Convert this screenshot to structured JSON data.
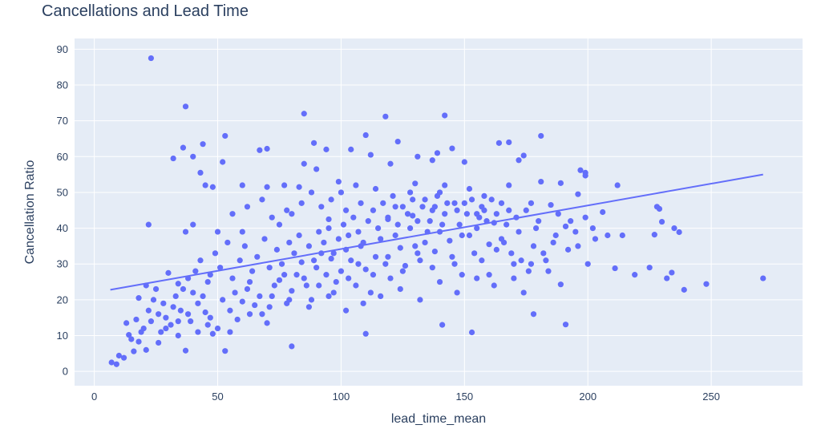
{
  "chart_data": {
    "type": "scatter",
    "title": "Cancellations and Lead Time",
    "xlabel": "lead_time_mean",
    "ylabel": "Cancellation Ratio",
    "xlim": [
      -8,
      287
    ],
    "ylim": [
      -4,
      93
    ],
    "x_ticks": [
      0,
      50,
      100,
      150,
      200,
      250
    ],
    "y_ticks": [
      0,
      10,
      20,
      30,
      40,
      50,
      60,
      70,
      80,
      90
    ],
    "grid": true,
    "legend": "none",
    "colors": {
      "plot_bg": "#e5ecf6",
      "grid": "#ffffff",
      "marker": "#636efa",
      "trend": "#636efa"
    },
    "trendline": {
      "x": [
        6.5,
        271
      ],
      "y": [
        22.8,
        55.0
      ]
    },
    "points": [
      [
        23,
        87.5
      ],
      [
        37,
        74
      ],
      [
        85,
        72
      ],
      [
        118,
        71.2
      ],
      [
        142,
        71.5
      ],
      [
        110,
        66
      ],
      [
        53,
        65.8
      ],
      [
        181,
        65.8
      ],
      [
        44,
        63.5
      ],
      [
        36,
        62.5
      ],
      [
        67,
        61.8
      ],
      [
        70,
        62.2
      ],
      [
        89,
        63.8
      ],
      [
        94,
        62
      ],
      [
        104,
        62
      ],
      [
        139,
        61
      ],
      [
        145,
        62.3
      ],
      [
        164,
        63.8
      ],
      [
        168,
        64
      ],
      [
        123,
        64.2
      ],
      [
        32,
        59.5
      ],
      [
        40,
        60
      ],
      [
        52,
        58.5
      ],
      [
        85,
        58
      ],
      [
        90,
        56.5
      ],
      [
        112,
        60.5
      ],
      [
        120,
        58
      ],
      [
        131,
        60
      ],
      [
        137,
        59
      ],
      [
        150,
        58.5
      ],
      [
        172,
        59
      ],
      [
        174,
        60.3
      ],
      [
        197,
        56.2
      ],
      [
        199,
        55.5
      ],
      [
        199,
        54.7
      ],
      [
        43,
        55.5
      ],
      [
        45,
        52
      ],
      [
        48,
        51.5
      ],
      [
        60,
        52
      ],
      [
        70,
        51.5
      ],
      [
        77,
        52
      ],
      [
        83,
        51.5
      ],
      [
        99,
        53
      ],
      [
        106,
        52
      ],
      [
        130,
        52.5
      ],
      [
        142,
        52
      ],
      [
        168,
        52
      ],
      [
        181,
        53
      ],
      [
        189,
        52.6
      ],
      [
        212,
        52
      ],
      [
        22,
        41
      ],
      [
        37,
        39
      ],
      [
        40,
        41
      ],
      [
        50,
        39
      ],
      [
        60,
        39
      ],
      [
        75,
        41
      ],
      [
        80,
        44
      ],
      [
        95,
        42.5
      ],
      [
        102,
        45
      ],
      [
        119,
        42.5
      ],
      [
        129,
        43.5
      ],
      [
        138,
        46
      ],
      [
        155,
        44
      ],
      [
        165,
        47
      ],
      [
        177,
        47
      ],
      [
        185,
        46.5
      ],
      [
        196,
        49.5
      ],
      [
        206,
        44.5
      ],
      [
        229,
        45.4
      ],
      [
        228,
        46
      ],
      [
        230,
        41.8
      ],
      [
        191,
        40.5
      ],
      [
        202,
        40
      ],
      [
        208,
        38
      ],
      [
        214,
        38
      ],
      [
        237,
        38.9
      ],
      [
        227,
        38.2
      ],
      [
        235,
        40
      ],
      [
        219,
        27
      ],
      [
        211,
        28.8
      ],
      [
        232,
        26
      ],
      [
        225,
        29
      ],
      [
        234,
        27.6
      ],
      [
        239,
        22.8
      ],
      [
        248,
        24.4
      ],
      [
        271,
        26
      ],
      [
        189,
        24.3
      ],
      [
        178,
        16
      ],
      [
        191,
        13.1
      ],
      [
        141,
        13
      ],
      [
        153,
        10.9
      ],
      [
        110,
        10.5
      ],
      [
        80,
        7
      ],
      [
        53,
        5.7
      ],
      [
        37,
        5.8
      ],
      [
        21,
        6
      ],
      [
        18,
        8.3
      ],
      [
        16,
        5.6
      ],
      [
        10,
        4.4
      ],
      [
        7,
        2.5
      ],
      [
        9,
        2
      ],
      [
        12,
        3.8
      ],
      [
        14,
        10.2
      ],
      [
        13,
        13.5
      ],
      [
        17,
        14.5
      ],
      [
        18,
        20.5
      ],
      [
        21,
        24
      ],
      [
        25,
        23
      ],
      [
        30,
        27.5
      ],
      [
        34,
        24.5
      ],
      [
        38,
        26
      ],
      [
        40,
        22
      ],
      [
        42,
        19
      ],
      [
        45,
        16.5
      ],
      [
        46,
        13
      ],
      [
        48,
        10.5
      ],
      [
        50,
        12
      ],
      [
        55,
        11
      ],
      [
        58,
        14.5
      ],
      [
        60,
        19.5
      ],
      [
        62,
        23
      ],
      [
        65,
        18.5
      ],
      [
        68,
        16
      ],
      [
        70,
        13.5
      ],
      [
        72,
        21
      ],
      [
        75,
        25.5
      ],
      [
        78,
        19
      ],
      [
        80,
        22.5
      ],
      [
        82,
        27
      ],
      [
        84,
        30.5
      ],
      [
        86,
        24
      ],
      [
        88,
        20
      ],
      [
        90,
        29
      ],
      [
        92,
        33
      ],
      [
        94,
        27
      ],
      [
        96,
        31.5
      ],
      [
        98,
        25
      ],
      [
        100,
        28
      ],
      [
        102,
        34
      ],
      [
        104,
        31
      ],
      [
        106,
        24
      ],
      [
        108,
        35
      ],
      [
        110,
        28.5
      ],
      [
        112,
        22
      ],
      [
        114,
        32
      ],
      [
        116,
        37
      ],
      [
        118,
        30
      ],
      [
        120,
        26
      ],
      [
        122,
        38
      ],
      [
        124,
        34.5
      ],
      [
        126,
        29.5
      ],
      [
        128,
        40
      ],
      [
        130,
        35
      ],
      [
        132,
        31
      ],
      [
        134,
        36
      ],
      [
        136,
        42
      ],
      [
        138,
        33.5
      ],
      [
        140,
        39
      ],
      [
        142,
        44
      ],
      [
        144,
        36.5
      ],
      [
        146,
        30
      ],
      [
        148,
        41
      ],
      [
        150,
        47
      ],
      [
        152,
        38
      ],
      [
        154,
        33
      ],
      [
        156,
        43
      ],
      [
        158,
        49
      ],
      [
        160,
        35.5
      ],
      [
        162,
        41.5
      ],
      [
        165,
        37
      ],
      [
        168,
        45
      ],
      [
        170,
        30
      ],
      [
        172,
        39
      ],
      [
        174,
        22
      ],
      [
        176,
        28
      ],
      [
        178,
        35
      ],
      [
        180,
        42
      ],
      [
        183,
        31
      ],
      [
        186,
        36
      ],
      [
        188,
        44
      ],
      [
        192,
        34
      ],
      [
        195,
        39
      ],
      [
        199,
        43
      ],
      [
        203,
        37
      ],
      [
        26,
        16
      ],
      [
        28,
        19
      ],
      [
        31,
        13
      ],
      [
        33,
        21
      ],
      [
        35,
        17
      ],
      [
        39,
        14
      ],
      [
        41,
        28
      ],
      [
        43,
        31
      ],
      [
        47,
        27
      ],
      [
        49,
        33
      ],
      [
        51,
        29
      ],
      [
        54,
        36
      ],
      [
        56,
        26
      ],
      [
        59,
        31
      ],
      [
        61,
        35
      ],
      [
        64,
        28
      ],
      [
        66,
        32
      ],
      [
        69,
        37
      ],
      [
        71,
        29
      ],
      [
        74,
        34
      ],
      [
        76,
        30
      ],
      [
        79,
        36
      ],
      [
        81,
        33
      ],
      [
        83,
        38
      ],
      [
        87,
        35
      ],
      [
        89,
        31
      ],
      [
        91,
        39
      ],
      [
        93,
        36
      ],
      [
        95,
        40
      ],
      [
        97,
        33
      ],
      [
        99,
        37
      ],
      [
        101,
        41
      ],
      [
        103,
        38
      ],
      [
        105,
        43
      ],
      [
        107,
        39
      ],
      [
        109,
        36
      ],
      [
        111,
        42
      ],
      [
        113,
        45
      ],
      [
        115,
        40
      ],
      [
        117,
        47
      ],
      [
        119,
        43
      ],
      [
        121,
        49
      ],
      [
        123,
        41
      ],
      [
        125,
        46
      ],
      [
        127,
        44
      ],
      [
        129,
        48
      ],
      [
        131,
        42
      ],
      [
        133,
        46
      ],
      [
        135,
        39
      ],
      [
        137,
        45
      ],
      [
        139,
        49
      ],
      [
        141,
        41
      ],
      [
        143,
        47
      ],
      [
        147,
        45
      ],
      [
        149,
        38
      ],
      [
        151,
        44
      ],
      [
        153,
        48
      ],
      [
        155,
        40
      ],
      [
        157,
        46
      ],
      [
        159,
        42
      ],
      [
        161,
        48
      ],
      [
        163,
        44
      ],
      [
        167,
        41
      ],
      [
        171,
        43
      ],
      [
        175,
        45
      ],
      [
        179,
        40
      ],
      [
        187,
        38
      ],
      [
        193,
        42
      ],
      [
        20,
        12
      ],
      [
        22,
        17
      ],
      [
        24,
        20
      ],
      [
        27,
        11
      ],
      [
        29,
        15
      ],
      [
        32,
        18
      ],
      [
        34,
        10
      ],
      [
        36,
        23
      ],
      [
        38,
        16
      ],
      [
        44,
        21
      ],
      [
        46,
        25
      ],
      [
        52,
        20
      ],
      [
        57,
        22
      ],
      [
        63,
        25
      ],
      [
        67,
        21
      ],
      [
        73,
        24
      ],
      [
        77,
        27
      ],
      [
        85,
        26
      ],
      [
        91,
        24
      ],
      [
        97,
        22
      ],
      [
        103,
        26
      ],
      [
        107,
        30
      ],
      [
        113,
        27
      ],
      [
        119,
        32
      ],
      [
        125,
        28
      ],
      [
        131,
        33
      ],
      [
        137,
        29
      ],
      [
        145,
        32
      ],
      [
        149,
        27
      ],
      [
        157,
        31
      ],
      [
        163,
        34
      ],
      [
        169,
        33
      ],
      [
        177,
        30
      ],
      [
        184,
        28
      ],
      [
        56,
        44
      ],
      [
        62,
        46
      ],
      [
        68,
        48
      ],
      [
        72,
        43
      ],
      [
        78,
        45
      ],
      [
        84,
        47
      ],
      [
        88,
        50
      ],
      [
        92,
        46
      ],
      [
        96,
        48
      ],
      [
        100,
        50
      ],
      [
        108,
        47
      ],
      [
        114,
        51
      ],
      [
        122,
        46
      ],
      [
        128,
        50
      ],
      [
        134,
        48
      ],
      [
        140,
        50
      ],
      [
        146,
        47
      ],
      [
        152,
        51
      ],
      [
        158,
        45
      ],
      [
        160,
        27
      ],
      [
        166,
        36
      ],
      [
        173,
        31
      ],
      [
        182,
        33
      ],
      [
        196,
        35
      ],
      [
        200,
        30
      ],
      [
        15,
        9
      ],
      [
        19,
        11
      ],
      [
        23,
        14
      ],
      [
        26,
        8
      ],
      [
        29,
        12
      ],
      [
        34,
        14
      ],
      [
        42,
        11
      ],
      [
        47,
        15
      ],
      [
        55,
        17
      ],
      [
        63,
        16
      ],
      [
        71,
        18
      ],
      [
        79,
        20
      ],
      [
        87,
        18
      ],
      [
        95,
        21
      ],
      [
        102,
        17
      ],
      [
        109,
        19
      ],
      [
        116,
        21
      ],
      [
        124,
        23
      ],
      [
        132,
        20
      ],
      [
        140,
        25
      ],
      [
        147,
        22
      ],
      [
        155,
        26
      ],
      [
        162,
        24
      ],
      [
        170,
        26
      ]
    ]
  }
}
